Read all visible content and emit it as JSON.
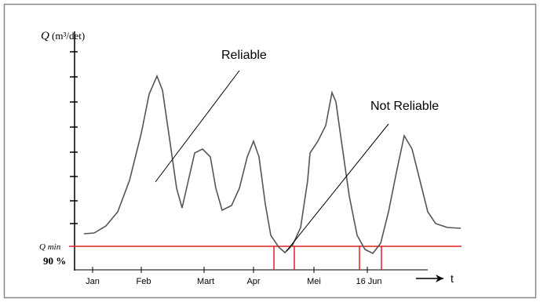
{
  "axis": {
    "y_symbol": "Q",
    "y_unit": "(m³/det)",
    "x_symbol": "t"
  },
  "labels": {
    "reliable": "Reliable",
    "not_reliable": "Not Reliable",
    "q_min": "Q min",
    "percent": "90 %"
  },
  "months": [
    "Jan",
    "Feb",
    "Mart",
    "Apr",
    "Mei",
    "16 Jun"
  ]
}
